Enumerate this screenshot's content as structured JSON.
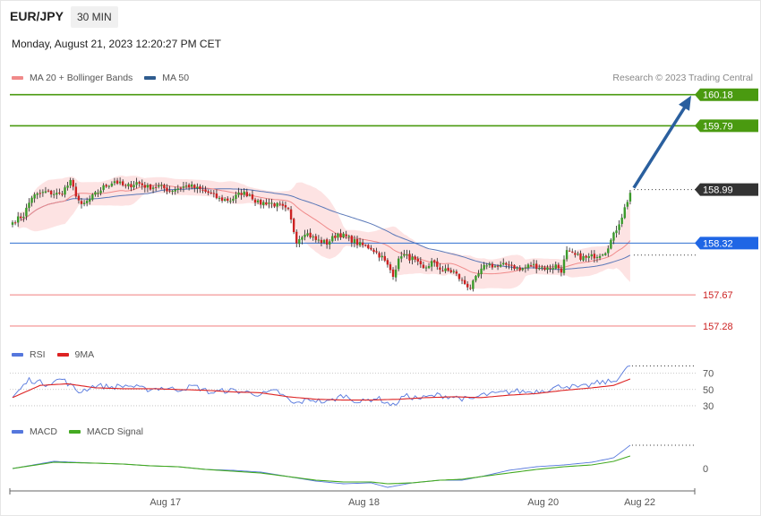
{
  "header": {
    "symbol": "EUR/JPY",
    "timeframe": "30 MIN",
    "datetime": "Monday, August 21, 2023 12:20:27 PM CET",
    "credit": "Research © 2023 Trading Central"
  },
  "legend_main": [
    {
      "label": "MA 20 + Bollinger Bands",
      "color": "#f08a8a"
    },
    {
      "label": "MA 50",
      "color": "#2f5c8f"
    }
  ],
  "legend_rsi": [
    {
      "label": "RSI",
      "color": "#5577dd"
    },
    {
      "label": "9MA",
      "color": "#dd2222"
    }
  ],
  "legend_macd": [
    {
      "label": "MACD",
      "color": "#5577dd"
    },
    {
      "label": "MACD Signal",
      "color": "#44aa22"
    }
  ],
  "colors": {
    "bull": "#3a9a2a",
    "bear": "#cc2222",
    "bb_fill": "#fcd9d9",
    "ma20": "#f08a8a",
    "ma50": "#5a78b8",
    "target": "#4a9a10",
    "support": "#f5a0a0",
    "pivot": "#2f6fd0",
    "current": "#333333",
    "arrow": "#2a5f9e"
  },
  "chart_data": [
    {
      "type": "candlestick",
      "panel": "price",
      "ylim": [
        157.1,
        160.3
      ],
      "x_tick_labels": [
        "Aug 17",
        "Aug 18",
        "Aug 20",
        "Aug 22"
      ],
      "levels": [
        {
          "value": 160.18,
          "label": "160.18",
          "kind": "target"
        },
        {
          "value": 159.79,
          "label": "159.79",
          "kind": "target"
        },
        {
          "value": 158.99,
          "label": "158.99",
          "kind": "current"
        },
        {
          "value": 158.32,
          "label": "158.32",
          "kind": "pivot"
        },
        {
          "value": 157.67,
          "label": "157.67",
          "kind": "support"
        },
        {
          "value": 157.28,
          "label": "157.28",
          "kind": "support"
        }
      ],
      "projection": {
        "from": 158.99,
        "to": 160.18
      },
      "close_anchors": [
        [
          0,
          158.58
        ],
        [
          4,
          158.67
        ],
        [
          7,
          158.9
        ],
        [
          12,
          158.96
        ],
        [
          17,
          158.93
        ],
        [
          21,
          159.08
        ],
        [
          25,
          158.78
        ],
        [
          29,
          158.9
        ],
        [
          33,
          159.02
        ],
        [
          37,
          159.1
        ],
        [
          41,
          159.02
        ],
        [
          45,
          159.08
        ],
        [
          49,
          159.02
        ],
        [
          53,
          159.03
        ],
        [
          57,
          158.98
        ],
        [
          61,
          159.02
        ],
        [
          64,
          159.04
        ],
        [
          67,
          159.0
        ],
        [
          71,
          158.95
        ],
        [
          75,
          158.87
        ],
        [
          79,
          158.86
        ],
        [
          83,
          158.95
        ],
        [
          86,
          158.93
        ],
        [
          89,
          158.82
        ],
        [
          93,
          158.83
        ],
        [
          97,
          158.78
        ],
        [
          100,
          158.72
        ],
        [
          103,
          158.35
        ],
        [
          106,
          158.46
        ],
        [
          110,
          158.36
        ],
        [
          114,
          158.32
        ],
        [
          118,
          158.44
        ],
        [
          122,
          158.38
        ],
        [
          126,
          158.3
        ],
        [
          130,
          158.26
        ],
        [
          134,
          158.14
        ],
        [
          138,
          157.93
        ],
        [
          141,
          158.18
        ],
        [
          145,
          158.12
        ],
        [
          149,
          157.99
        ],
        [
          152,
          158.08
        ],
        [
          156,
          157.98
        ],
        [
          160,
          157.96
        ],
        [
          163,
          157.84
        ],
        [
          166,
          157.76
        ],
        [
          169,
          157.93
        ],
        [
          172,
          158.06
        ],
        [
          176,
          158.02
        ],
        [
          180,
          158.06
        ],
        [
          184,
          157.98
        ],
        [
          188,
          158.05
        ],
        [
          191,
          158.02
        ],
        [
          194,
          158.0
        ],
        [
          197,
          158.04
        ],
        [
          199,
          157.98
        ],
        [
          201,
          158.21
        ],
        [
          204,
          158.16
        ],
        [
          208,
          158.13
        ],
        [
          212,
          158.17
        ],
        [
          215,
          158.22
        ],
        [
          218,
          158.42
        ],
        [
          221,
          158.66
        ],
        [
          224,
          158.95
        ]
      ]
    },
    {
      "type": "line",
      "panel": "rsi",
      "ylim": [
        20,
        85
      ],
      "y_ticks": [
        70,
        50,
        30
      ],
      "rsi_anchors": [
        [
          0,
          40
        ],
        [
          6,
          62
        ],
        [
          12,
          57
        ],
        [
          18,
          63
        ],
        [
          24,
          47
        ],
        [
          30,
          55
        ],
        [
          36,
          53
        ],
        [
          42,
          55
        ],
        [
          48,
          50
        ],
        [
          54,
          52
        ],
        [
          60,
          50
        ],
        [
          66,
          54
        ],
        [
          72,
          46
        ],
        [
          78,
          49
        ],
        [
          84,
          47
        ],
        [
          90,
          44
        ],
        [
          96,
          48
        ],
        [
          102,
          32
        ],
        [
          108,
          38
        ],
        [
          114,
          34
        ],
        [
          120,
          43
        ],
        [
          126,
          34
        ],
        [
          132,
          40
        ],
        [
          138,
          30
        ],
        [
          142,
          42
        ],
        [
          148,
          39
        ],
        [
          154,
          43
        ],
        [
          160,
          41
        ],
        [
          166,
          37
        ],
        [
          170,
          43
        ],
        [
          176,
          45
        ],
        [
          182,
          48
        ],
        [
          188,
          47
        ],
        [
          194,
          50
        ],
        [
          200,
          55
        ],
        [
          206,
          52
        ],
        [
          212,
          58
        ],
        [
          218,
          60
        ],
        [
          224,
          79
        ]
      ],
      "ma_anchors": [
        [
          0,
          40
        ],
        [
          10,
          55
        ],
        [
          20,
          57
        ],
        [
          30,
          52
        ],
        [
          40,
          51
        ],
        [
          50,
          51
        ],
        [
          60,
          50
        ],
        [
          70,
          49
        ],
        [
          80,
          47
        ],
        [
          90,
          46
        ],
        [
          100,
          41
        ],
        [
          110,
          38
        ],
        [
          120,
          37
        ],
        [
          130,
          37
        ],
        [
          140,
          38
        ],
        [
          150,
          40
        ],
        [
          160,
          41
        ],
        [
          170,
          40
        ],
        [
          180,
          43
        ],
        [
          190,
          45
        ],
        [
          200,
          49
        ],
        [
          210,
          52
        ],
        [
          218,
          55
        ],
        [
          224,
          63
        ]
      ]
    },
    {
      "type": "line",
      "panel": "macd",
      "y_ticks": [
        0
      ],
      "ylim": [
        -0.25,
        0.35
      ],
      "macd_anchors": [
        [
          0,
          0.0
        ],
        [
          15,
          0.08
        ],
        [
          30,
          0.06
        ],
        [
          40,
          0.05
        ],
        [
          50,
          0.03
        ],
        [
          60,
          0.02
        ],
        [
          70,
          -0.01
        ],
        [
          80,
          -0.02
        ],
        [
          90,
          -0.04
        ],
        [
          100,
          -0.09
        ],
        [
          110,
          -0.14
        ],
        [
          120,
          -0.17
        ],
        [
          130,
          -0.16
        ],
        [
          136,
          -0.21
        ],
        [
          145,
          -0.16
        ],
        [
          155,
          -0.13
        ],
        [
          163,
          -0.13
        ],
        [
          170,
          -0.09
        ],
        [
          180,
          -0.02
        ],
        [
          190,
          0.02
        ],
        [
          200,
          0.04
        ],
        [
          210,
          0.07
        ],
        [
          218,
          0.12
        ],
        [
          224,
          0.26
        ]
      ],
      "signal_anchors": [
        [
          0,
          0.0
        ],
        [
          15,
          0.07
        ],
        [
          30,
          0.06
        ],
        [
          40,
          0.05
        ],
        [
          50,
          0.03
        ],
        [
          60,
          0.02
        ],
        [
          70,
          -0.01
        ],
        [
          80,
          -0.03
        ],
        [
          90,
          -0.05
        ],
        [
          100,
          -0.09
        ],
        [
          110,
          -0.13
        ],
        [
          120,
          -0.15
        ],
        [
          130,
          -0.15
        ],
        [
          136,
          -0.17
        ],
        [
          145,
          -0.16
        ],
        [
          155,
          -0.13
        ],
        [
          163,
          -0.12
        ],
        [
          170,
          -0.09
        ],
        [
          180,
          -0.05
        ],
        [
          190,
          -0.01
        ],
        [
          200,
          0.02
        ],
        [
          210,
          0.04
        ],
        [
          218,
          0.08
        ],
        [
          224,
          0.14
        ]
      ]
    }
  ]
}
